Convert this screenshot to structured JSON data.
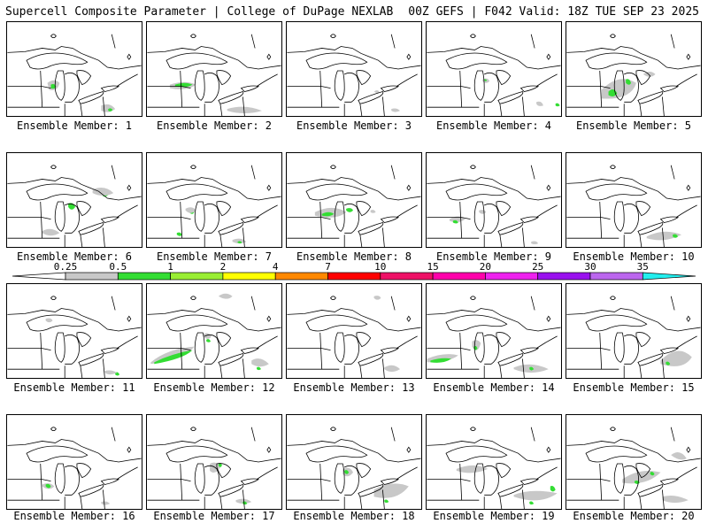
{
  "header": {
    "title": "Supercell Composite Parameter | College of DuPage NEXLAB",
    "valid": "00Z GEFS | F042 Valid: 18Z TUE SEP 23 2025"
  },
  "members": [
    {
      "label": "Ensemble Member: 1"
    },
    {
      "label": "Ensemble Member: 2"
    },
    {
      "label": "Ensemble Member: 3"
    },
    {
      "label": "Ensemble Member: 4"
    },
    {
      "label": "Ensemble Member: 5"
    },
    {
      "label": "Ensemble Member: 6"
    },
    {
      "label": "Ensemble Member: 7"
    },
    {
      "label": "Ensemble Member: 8"
    },
    {
      "label": "Ensemble Member: 9"
    },
    {
      "label": "Ensemble Member: 10"
    },
    {
      "label": "Ensemble Member: 11"
    },
    {
      "label": "Ensemble Member: 12"
    },
    {
      "label": "Ensemble Member: 13"
    },
    {
      "label": "Ensemble Member: 14"
    },
    {
      "label": "Ensemble Member: 15"
    },
    {
      "label": "Ensemble Member: 16"
    },
    {
      "label": "Ensemble Member: 17"
    },
    {
      "label": "Ensemble Member: 18"
    },
    {
      "label": "Ensemble Member: 19"
    },
    {
      "label": "Ensemble Member: 20"
    }
  ],
  "colorbar": {
    "labels": [
      "0.25",
      "0.5",
      "1",
      "2",
      "4",
      "7",
      "10",
      "15",
      "20",
      "25",
      "30",
      "35"
    ],
    "colors": [
      "#ffffff",
      "#c8c8c8",
      "#33dd33",
      "#99ee33",
      "#ffff00",
      "#ff8800",
      "#ff0000",
      "#ee1166",
      "#ff00aa",
      "#ee22ee",
      "#9911ee",
      "#bb66ee",
      "#22eeee"
    ]
  },
  "colors": {
    "low": "#c8c8c8",
    "moderate": "#33dd33"
  }
}
